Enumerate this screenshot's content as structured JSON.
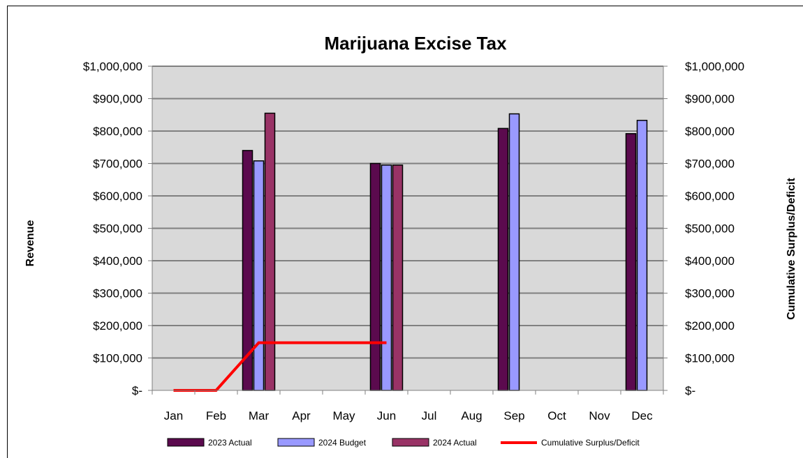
{
  "chart_data": {
    "type": "bar",
    "title": "Marijuana Excise Tax",
    "ylabel": "Revenue",
    "y2label": "Cumulative  Surplus/Deficit",
    "ylim": [
      0,
      1000000
    ],
    "y2lim": [
      0,
      1000000
    ],
    "yticks": [
      0,
      100000,
      200000,
      300000,
      400000,
      500000,
      600000,
      700000,
      800000,
      900000,
      1000000
    ],
    "ytick_labels": [
      "$-",
      "$100,000",
      "$200,000",
      "$300,000",
      "$400,000",
      "$500,000",
      "$600,000",
      "$700,000",
      "$800,000",
      "$900,000",
      "$1,000,000"
    ],
    "categories": [
      "Jan",
      "Feb",
      "Mar",
      "Apr",
      "May",
      "Jun",
      "Jul",
      "Aug",
      "Sep",
      "Oct",
      "Nov",
      "Dec"
    ],
    "grid": true,
    "legend_position": "bottom",
    "series": [
      {
        "name": "2023 Actual",
        "type": "bar",
        "color": "#5b0a4e",
        "values": [
          null,
          null,
          740000,
          null,
          null,
          700000,
          null,
          null,
          808000,
          null,
          null,
          792000
        ]
      },
      {
        "name": "2024 Budget",
        "type": "bar",
        "color": "#9999ff",
        "values": [
          null,
          null,
          708000,
          null,
          null,
          695000,
          null,
          null,
          853000,
          null,
          null,
          833000
        ]
      },
      {
        "name": "2024 Actual",
        "type": "bar",
        "color": "#993366",
        "values": [
          null,
          null,
          855000,
          null,
          null,
          695000,
          null,
          null,
          null,
          null,
          null,
          null
        ]
      },
      {
        "name": "Cumulative Surplus/Deficit",
        "type": "line",
        "axis": "right",
        "color": "#ff0000",
        "values": [
          0,
          0,
          147000,
          147000,
          147000,
          147000,
          null,
          null,
          null,
          null,
          null,
          null
        ]
      }
    ]
  }
}
